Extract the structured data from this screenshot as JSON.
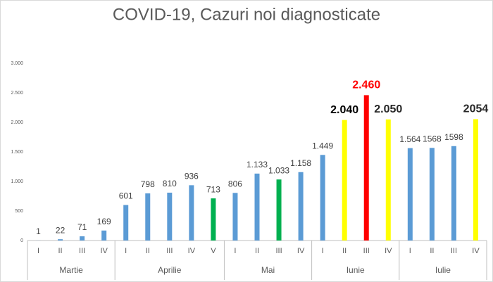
{
  "chart_data": {
    "type": "bar",
    "title": "COVID-19, Cazuri noi diagnosticate",
    "category_groups": [
      {
        "label": "Martie",
        "categories": [
          "I",
          "II",
          "III",
          "IV"
        ]
      },
      {
        "label": "Aprilie",
        "categories": [
          "I",
          "II",
          "III",
          "IV",
          "V"
        ]
      },
      {
        "label": "Mai",
        "categories": [
          "I",
          "II",
          "III",
          "IV"
        ]
      },
      {
        "label": "Iunie",
        "categories": [
          "I",
          "II",
          "III",
          "IV"
        ]
      },
      {
        "label": "Iulie",
        "categories": [
          "I",
          "II",
          "III",
          "IV"
        ]
      }
    ],
    "values": [
      1,
      22,
      71,
      169,
      601,
      798,
      810,
      936,
      713,
      806,
      1133,
      1033,
      1158,
      1449,
      2040,
      2460,
      2050,
      1564,
      1568,
      1598,
      2054
    ],
    "value_labels": [
      "1",
      "22",
      "71",
      "169",
      "601",
      "798",
      "810",
      "936",
      "713",
      "806",
      "1.133",
      "1.033",
      "1.158",
      "1.449",
      "2.040",
      "2.460",
      "2.050",
      "1.564",
      "1568",
      "1598",
      "2054"
    ],
    "colors": [
      "#5b9bd5",
      "#5b9bd5",
      "#5b9bd5",
      "#5b9bd5",
      "#5b9bd5",
      "#5b9bd5",
      "#5b9bd5",
      "#5b9bd5",
      "#00b050",
      "#5b9bd5",
      "#5b9bd5",
      "#00b050",
      "#5b9bd5",
      "#5b9bd5",
      "#ffff00",
      "#ff0000",
      "#ffff00",
      "#5b9bd5",
      "#5b9bd5",
      "#5b9bd5",
      "#ffff00"
    ],
    "label_colors": [
      "#404040",
      "#404040",
      "#404040",
      "#404040",
      "#404040",
      "#404040",
      "#404040",
      "#404040",
      "#404040",
      "#404040",
      "#404040",
      "#404040",
      "#404040",
      "#404040",
      "#000000",
      "#ff0000",
      "#262626",
      "#404040",
      "#404040",
      "#404040",
      "#262626"
    ],
    "label_bold": [
      false,
      false,
      false,
      false,
      false,
      false,
      false,
      false,
      false,
      false,
      false,
      false,
      false,
      false,
      true,
      true,
      true,
      false,
      false,
      false,
      true
    ],
    "ylim": [
      0,
      3000
    ],
    "yticks": [
      0,
      500,
      {
        "value": 1000,
        "label": "1.000"
      },
      {
        "value": 1500,
        "label": "1.500"
      },
      {
        "value": 2000,
        "label": "2.000"
      },
      {
        "value": 2500,
        "label": "2.500"
      },
      {
        "value": 3000,
        "label": "3.000"
      }
    ],
    "grid": false
  }
}
